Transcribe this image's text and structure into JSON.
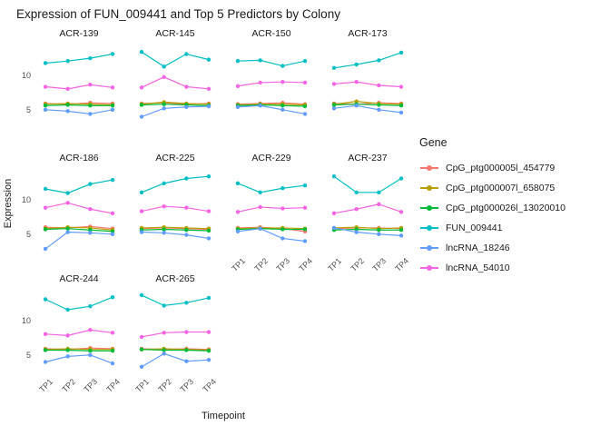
{
  "title": "Expression of FUN_009441 and Top 5 Predictors by Colony",
  "axes": {
    "x_title": "Timepoint",
    "y_title": "Expression",
    "x_ticks": [
      "TP1",
      "TP2",
      "TP3",
      "TP4"
    ],
    "y_ticks": [
      5,
      10
    ]
  },
  "legend": {
    "title": "Gene"
  },
  "chart_data": {
    "type": "line",
    "title": "Expression of FUN_009441 and Top 5 Predictors by Colony",
    "xlabel": "Timepoint",
    "ylabel": "Expression",
    "x": [
      "TP1",
      "TP2",
      "TP3",
      "TP4"
    ],
    "ylim": [
      2.5,
      14.5
    ],
    "y_ticks": [
      5,
      10
    ],
    "legend_position": "right",
    "grid": false,
    "genes": [
      {
        "name": "CpG_ptg000005l_454779",
        "color": "#F8766D"
      },
      {
        "name": "CpG_ptg000007l_658075",
        "color": "#B79F00"
      },
      {
        "name": "CpG_ptg000026l_13020010",
        "color": "#00BA38"
      },
      {
        "name": "FUN_009441",
        "color": "#00BFC4"
      },
      {
        "name": "lncRNA_18246",
        "color": "#619CFF"
      },
      {
        "name": "lncRNA_54010",
        "color": "#F564E3"
      }
    ],
    "facets": [
      {
        "name": "ACR-139",
        "values": [
          [
            5.9,
            5.8,
            6.0,
            5.9
          ],
          [
            5.8,
            5.9,
            5.8,
            5.7
          ],
          [
            5.6,
            5.7,
            5.6,
            5.6
          ],
          [
            11.7,
            12.0,
            12.4,
            13.0
          ],
          [
            5.0,
            4.8,
            4.4,
            5.0
          ],
          [
            8.3,
            8.0,
            8.6,
            8.2
          ]
        ]
      },
      {
        "name": "ACR-145",
        "values": [
          [
            5.9,
            6.0,
            5.8,
            5.9
          ],
          [
            5.8,
            6.1,
            5.9,
            5.8
          ],
          [
            5.7,
            5.8,
            5.7,
            5.6
          ],
          [
            13.3,
            11.2,
            13.0,
            12.2
          ],
          [
            4.0,
            5.2,
            5.4,
            5.5
          ],
          [
            8.2,
            9.7,
            8.3,
            8.0
          ]
        ]
      },
      {
        "name": "ACR-150",
        "values": [
          [
            5.8,
            5.9,
            6.0,
            5.8
          ],
          [
            5.7,
            5.8,
            5.8,
            5.7
          ],
          [
            5.6,
            5.7,
            5.6,
            5.5
          ],
          [
            12.0,
            12.1,
            11.3,
            12.0
          ],
          [
            5.4,
            5.6,
            5.0,
            4.4
          ],
          [
            8.4,
            8.9,
            9.0,
            8.9
          ]
        ]
      },
      {
        "name": "ACR-173",
        "values": [
          [
            5.9,
            5.8,
            6.0,
            5.9
          ],
          [
            5.8,
            6.2,
            5.9,
            5.8
          ],
          [
            5.7,
            5.8,
            5.7,
            5.6
          ],
          [
            11.0,
            11.5,
            12.1,
            13.2
          ],
          [
            5.2,
            5.6,
            5.0,
            4.6
          ],
          [
            8.7,
            9.0,
            8.5,
            8.3
          ]
        ]
      },
      {
        "name": "ACR-186",
        "values": [
          [
            6.0,
            5.9,
            6.1,
            5.8
          ],
          [
            5.8,
            6.0,
            5.9,
            5.6
          ],
          [
            5.7,
            5.8,
            5.6,
            5.4
          ],
          [
            11.5,
            10.9,
            12.2,
            12.8
          ],
          [
            2.9,
            5.3,
            5.2,
            5.0
          ],
          [
            8.8,
            9.5,
            8.6,
            8.0
          ]
        ]
      },
      {
        "name": "ACR-225",
        "values": [
          [
            5.8,
            5.9,
            5.8,
            5.7
          ],
          [
            5.9,
            6.0,
            5.9,
            5.8
          ],
          [
            5.6,
            5.7,
            5.6,
            5.5
          ],
          [
            11.0,
            12.3,
            13.0,
            13.3
          ],
          [
            5.3,
            5.2,
            4.9,
            4.4
          ],
          [
            8.3,
            9.0,
            8.8,
            8.3
          ]
        ]
      },
      {
        "name": "ACR-229",
        "values": [
          [
            5.9,
            6.0,
            5.8,
            5.4
          ],
          [
            5.8,
            5.9,
            5.9,
            5.8
          ],
          [
            5.7,
            5.8,
            5.7,
            5.7
          ],
          [
            12.3,
            11.0,
            11.6,
            12.0
          ],
          [
            5.4,
            5.8,
            4.4,
            4.0
          ],
          [
            8.2,
            8.9,
            8.7,
            8.8
          ]
        ]
      },
      {
        "name": "ACR-237",
        "values": [
          [
            5.8,
            5.9,
            5.9,
            5.8
          ],
          [
            5.9,
            6.0,
            5.8,
            5.9
          ],
          [
            5.6,
            5.7,
            5.6,
            5.6
          ],
          [
            13.3,
            11.0,
            11.0,
            13.0
          ],
          [
            5.9,
            5.3,
            5.0,
            4.8
          ],
          [
            8.0,
            8.6,
            9.3,
            8.2
          ]
        ]
      },
      {
        "name": "ACR-244",
        "values": [
          [
            5.9,
            5.8,
            6.0,
            5.9
          ],
          [
            5.8,
            5.9,
            5.8,
            5.8
          ],
          [
            5.7,
            5.7,
            5.6,
            5.6
          ],
          [
            13.0,
            11.5,
            12.0,
            13.3
          ],
          [
            4.0,
            4.8,
            5.0,
            3.8
          ],
          [
            8.0,
            7.8,
            8.6,
            8.2
          ]
        ]
      },
      {
        "name": "ACR-265",
        "values": [
          [
            5.9,
            5.8,
            5.9,
            5.8
          ],
          [
            5.8,
            5.9,
            5.8,
            5.7
          ],
          [
            5.8,
            5.7,
            5.7,
            5.6
          ],
          [
            13.6,
            12.1,
            12.5,
            13.2
          ],
          [
            3.3,
            5.2,
            4.1,
            4.3
          ],
          [
            7.6,
            8.2,
            8.3,
            8.3
          ]
        ]
      }
    ]
  }
}
